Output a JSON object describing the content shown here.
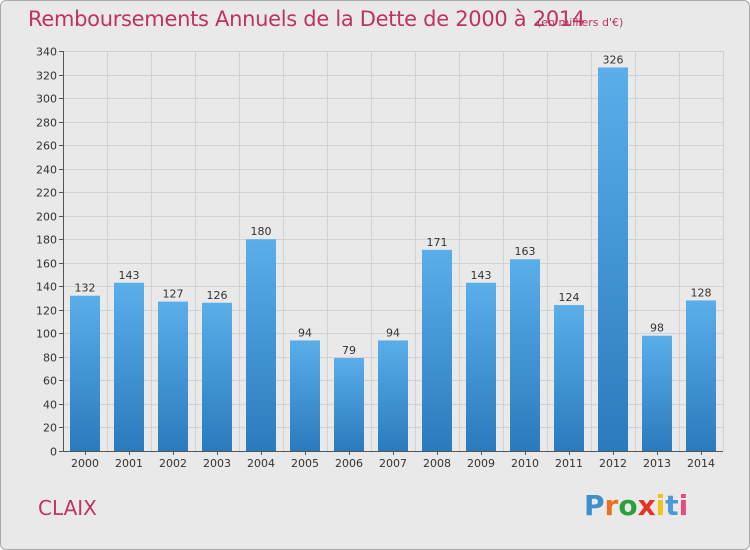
{
  "header": {
    "title": "Remboursements Annuels de la Dette de 2000 à 2014",
    "subtitle": "(en milliers d'€)"
  },
  "footer": {
    "city": "CLAIX",
    "logo_letters": [
      "P",
      "r",
      "o",
      "x",
      "i",
      "t",
      "i"
    ],
    "logo_colors": [
      "#3d8fd0",
      "#e8731a",
      "#2c9e3c",
      "#e63327",
      "#f0c318",
      "#4a9ad8",
      "#e64b7b"
    ]
  },
  "chart_data": {
    "type": "bar",
    "title": "Remboursements Annuels de la Dette de 2000 à 2014",
    "subtitle": "(en milliers d'€)",
    "xlabel": "",
    "ylabel": "",
    "categories": [
      "2000",
      "2001",
      "2002",
      "2003",
      "2004",
      "2005",
      "2006",
      "2007",
      "2008",
      "2009",
      "2010",
      "2011",
      "2012",
      "2013",
      "2014"
    ],
    "values": [
      132,
      143,
      127,
      126,
      180,
      94,
      79,
      94,
      171,
      143,
      163,
      124,
      326,
      98,
      128
    ],
    "ylim": [
      0,
      340
    ],
    "yticks": [
      0,
      20,
      40,
      60,
      80,
      100,
      120,
      140,
      160,
      180,
      200,
      220,
      240,
      260,
      280,
      300,
      320,
      340
    ],
    "grid": true,
    "bar_color_light": "#5aaeea",
    "bar_color_dark": "#2a7bbd"
  }
}
